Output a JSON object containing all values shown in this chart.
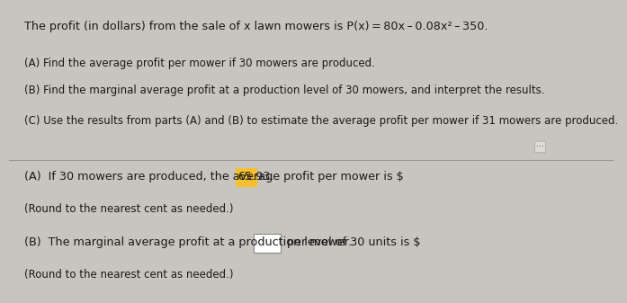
{
  "bg_top_color": "#c8c5bf",
  "bg_bottom_color": "#d6d2cc",
  "separator_color": "#999999",
  "text_color": "#1a1a1a",
  "highlight_color": "#f5c030",
  "box_edge_color": "#888888",
  "title_line": "The profit (in dollars) from the sale of x lawn mowers is P(x) = 80x – 0.08x² – 350.",
  "q_A": "(A) Find the average profit per mower if 30 mowers are produced.",
  "q_B": "(B) Find the marginal average profit at a production level of 30 mowers, and interpret the results.",
  "q_C": "(C) Use the results from parts (A) and (B) to estimate the average profit per mower if 31 mowers are produced.",
  "ans_A1_pre": "(A)  If 30 mowers are produced, the average profit per mower is $ ",
  "ans_A1_val": "65.93",
  "ans_A1_post": ".",
  "ans_A2": "(Round to the nearest cent as needed.)",
  "ans_B1_pre": "(B)  The marginal average profit at a production level of 30 units is $",
  "ans_B1_post": " per mower.",
  "ans_B2": "(Round to the nearest cent as needed.)",
  "font_size": 9.2,
  "font_size_small": 8.5
}
